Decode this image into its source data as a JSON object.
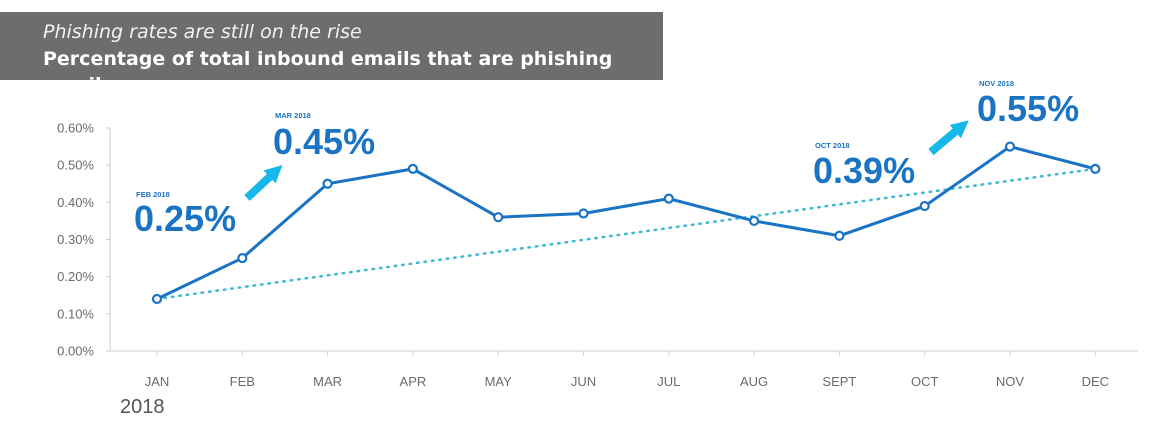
{
  "header": {
    "subtitle": "Phishing rates are still on the rise",
    "title": "Percentage of total inbound emails that are phishing emails"
  },
  "colors": {
    "header_bg": "#6d6d6d",
    "series_line": "#1a73c3",
    "trend_line": "#3bb8d4",
    "arrow": "#17b7ea",
    "annotation": "#1a73c3",
    "axis": "#cfcfcf",
    "tick_text": "#6b6b6b"
  },
  "chart_data": {
    "type": "line",
    "categories": [
      "JAN",
      "FEB",
      "MAR",
      "APR",
      "MAY",
      "JUN",
      "JUL",
      "AUG",
      "SEPT",
      "OCT",
      "NOV",
      "DEC"
    ],
    "series": [
      {
        "values": [
          0.14,
          0.25,
          0.45,
          0.49,
          0.36,
          0.37,
          0.41,
          0.35,
          0.31,
          0.39,
          0.55,
          0.49
        ]
      }
    ],
    "trendline": {
      "style": "dotted",
      "start": 0.14,
      "end": 0.49
    },
    "y_ticks": [
      "0.00%",
      "0.10%",
      "0.20%",
      "0.30%",
      "0.40%",
      "0.50%",
      "0.60%"
    ],
    "ylim": [
      0,
      0.6
    ],
    "x_year_label": "2018",
    "grid": false,
    "annotations": [
      {
        "category": "FEB",
        "date_label": "FEB 2018",
        "value_label": "0.25%"
      },
      {
        "category": "MAR",
        "date_label": "MAR 2018",
        "value_label": "0.45%"
      },
      {
        "category": "OCT",
        "date_label": "OCT 2018",
        "value_label": "0.39%"
      },
      {
        "category": "NOV",
        "date_label": "NOV 2018",
        "value_label": "0.55%"
      }
    ]
  }
}
